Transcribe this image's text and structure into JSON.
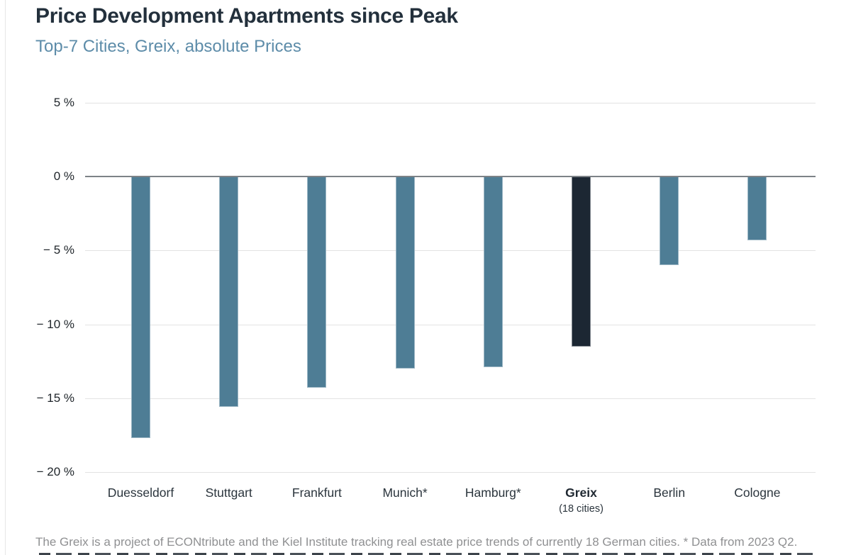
{
  "header": {
    "title": "Price Development Apartments since Peak",
    "subtitle": "Top-7 Cities, Greix, absolute Prices"
  },
  "footer": {
    "note": "The Greix is a project of ECONtribute and the Kiel Institute tracking real estate price trends of currently 18 German cities. * Data from 2023 Q2."
  },
  "chart_data": {
    "type": "bar",
    "title": "Price Development Apartments since Peak",
    "subtitle": "Top-7 Cities, Greix, absolute Prices",
    "categories": [
      "Duesseldorf",
      "Stuttgart",
      "Frankfurt",
      "Munich*",
      "Hamburg*",
      "Greix",
      "Berlin",
      "Cologne"
    ],
    "sub_labels": [
      "",
      "",
      "",
      "",
      "",
      "(18 cities)",
      "",
      ""
    ],
    "values": [
      -17.7,
      -15.6,
      -14.3,
      -13.0,
      -12.9,
      -11.5,
      -6.0,
      -4.3
    ],
    "unit": "%",
    "highlight_index": 5,
    "bar_color": "#4e7d95",
    "highlight_color": "#1c2733",
    "y_ticks": [
      5,
      0,
      -5,
      -10,
      -15,
      -20
    ],
    "y_tick_labels": [
      "5 %",
      "0 %",
      "− 5 %",
      "− 10 %",
      "− 15 %",
      "− 20 %"
    ],
    "ylim": [
      -20,
      5
    ],
    "grid": true,
    "legend": "none",
    "xlabel": "",
    "ylabel": ""
  }
}
